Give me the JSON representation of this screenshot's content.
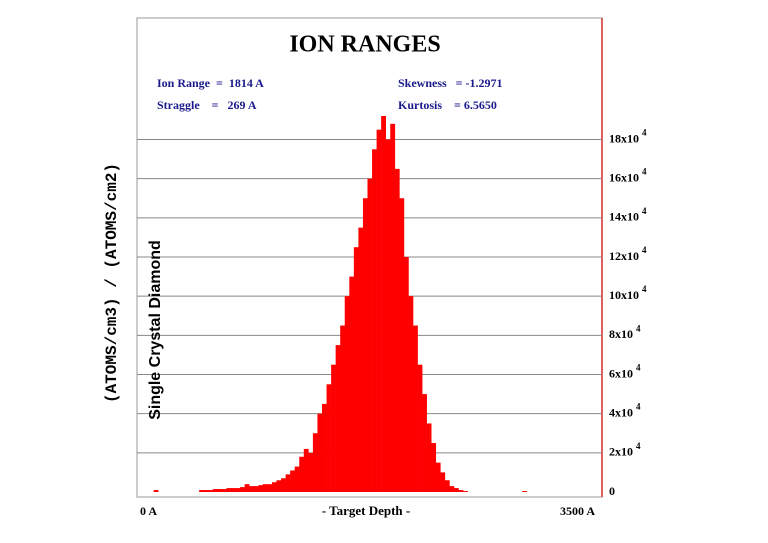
{
  "chart_data": {
    "type": "histogram",
    "title": "ION RANGES",
    "annotations": [
      "Ion Range  =  1814 A",
      "Straggle    =   269 A",
      "Skewness   = -1.2971",
      "Kurtosis    = 6.5650"
    ],
    "xlabel": "- Target Depth -",
    "ylabel": "(ATOMS/cm3) / (ATOMS/cm2)",
    "subtitle": "Single Crystal Diamond",
    "color": "#ff0000",
    "grid": true,
    "xlim": [
      0,
      3500
    ],
    "xticks": [
      {
        "value": 0,
        "label": "0 A"
      },
      {
        "value": 3500,
        "label": "3500 A"
      }
    ],
    "ylim": [
      0,
      240000
    ],
    "ytick_exponent": "4",
    "yticks": [
      0,
      {
        "value": 20000,
        "label": "2x10"
      },
      {
        "value": 40000,
        "label": "4x10"
      },
      {
        "value": 60000,
        "label": "6x10"
      },
      {
        "value": 80000,
        "label": "8x10"
      },
      {
        "value": 100000,
        "label": "10x10"
      },
      {
        "value": 120000,
        "label": "12x10"
      },
      {
        "value": 140000,
        "label": "14x10"
      },
      {
        "value": 160000,
        "label": "16x10"
      },
      {
        "value": 180000,
        "label": "18x10"
      }
    ],
    "bins": [
      0,
      35,
      70,
      105,
      140,
      175,
      210,
      245,
      280,
      315,
      350,
      385,
      420,
      455,
      490,
      525,
      560,
      595,
      630,
      665,
      700,
      735,
      770,
      805,
      840,
      875,
      910,
      945,
      980,
      1015,
      1050,
      1085,
      1120,
      1155,
      1190,
      1225,
      1260,
      1295,
      1330,
      1365,
      1400,
      1435,
      1470,
      1505,
      1540,
      1575,
      1610,
      1645,
      1680,
      1715,
      1750,
      1785,
      1820,
      1855,
      1890,
      1925,
      1960,
      1995,
      2030,
      2065,
      2100,
      2135,
      2170,
      2205,
      2240,
      2275,
      2310,
      2345,
      2380,
      2415,
      2450,
      2485,
      2520,
      2555,
      2590,
      2625,
      2660,
      2695,
      2730,
      2765,
      2800,
      2835,
      2870,
      2905,
      2940,
      2975,
      3010,
      3045,
      3080,
      3115,
      3150,
      3185,
      3220,
      3255,
      3290,
      3325,
      3360,
      3395,
      3430,
      3465,
      3500
    ],
    "counts": [
      0,
      0,
      0,
      1000,
      0,
      0,
      0,
      0,
      0,
      0,
      0,
      0,
      0,
      1000,
      1000,
      1000,
      1500,
      1500,
      1500,
      2000,
      2000,
      2000,
      2500,
      4000,
      3000,
      3000,
      3500,
      4000,
      4000,
      5000,
      6000,
      7000,
      9000,
      11000,
      13000,
      18000,
      22000,
      20000,
      30000,
      40000,
      45000,
      55000,
      65000,
      75000,
      85000,
      100000,
      110000,
      125000,
      135000,
      150000,
      160000,
      175000,
      185000,
      192000,
      180000,
      188000,
      165000,
      150000,
      120000,
      100000,
      85000,
      65000,
      50000,
      35000,
      25000,
      15000,
      10000,
      6000,
      3000,
      2000,
      1000,
      500,
      0,
      0,
      0,
      0,
      0,
      0,
      0,
      0,
      0,
      0,
      0,
      0,
      500,
      0,
      0,
      0,
      0,
      0,
      0,
      0,
      0,
      0,
      0,
      0,
      0,
      0,
      0,
      0,
      0
    ]
  }
}
